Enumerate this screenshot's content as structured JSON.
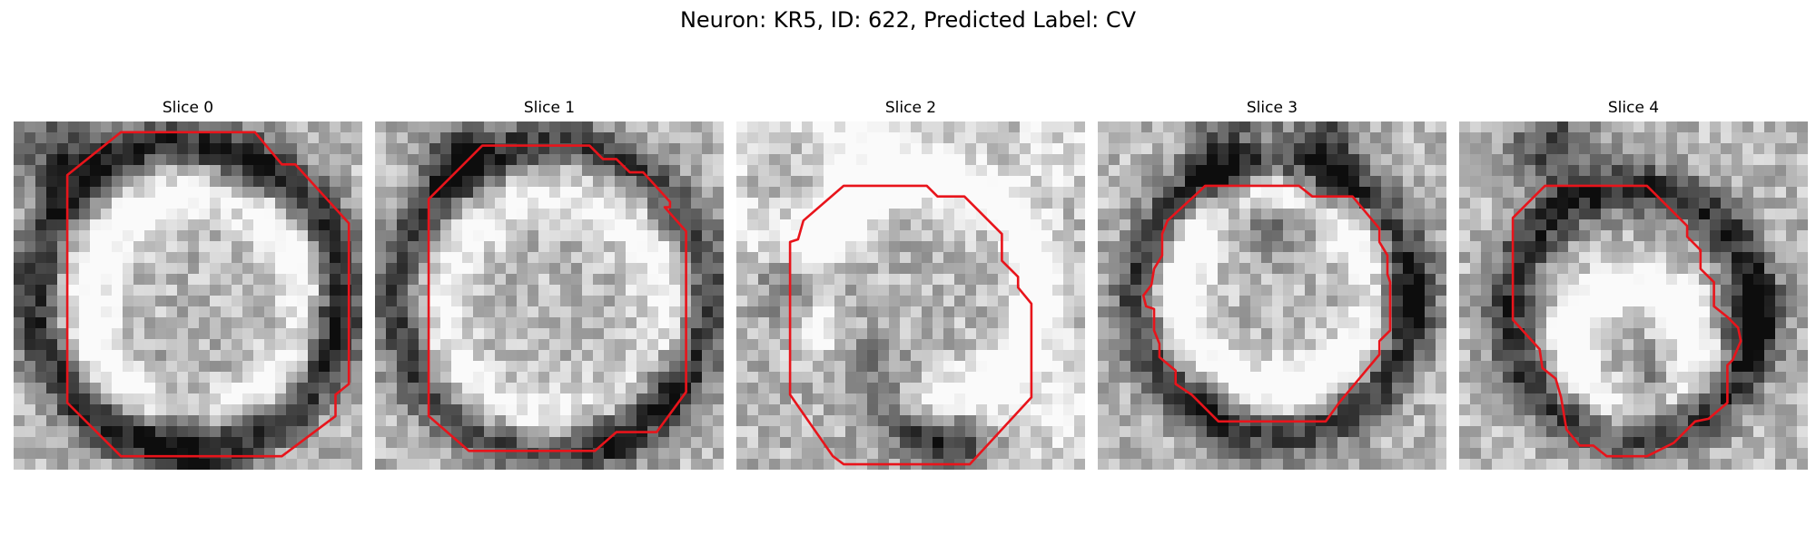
{
  "figure": {
    "title": "Neuron: KR5, ID: 622, Predicted Label: CV"
  },
  "panels": [
    {
      "title": "Slice 0",
      "contour": [
        [
          4,
          0.4
        ],
        [
          9,
          0.4
        ],
        [
          10,
          1.6
        ],
        [
          10.5,
          1.6
        ],
        [
          12.5,
          3.8
        ],
        [
          12.5,
          9.8
        ],
        [
          12,
          10.2
        ],
        [
          12,
          11
        ],
        [
          10,
          12.5
        ],
        [
          4,
          12.5
        ],
        [
          2,
          10.5
        ],
        [
          2,
          2
        ]
      ],
      "blobs": [
        {
          "x": 6.5,
          "y": 6.5,
          "r": 5.7,
          "a": -0.55
        },
        {
          "x": 6.8,
          "y": 6.8,
          "r": 4.0,
          "a": 0.45
        },
        {
          "x": 1.6,
          "y": 0.9,
          "r": 1.6,
          "a": -0.45
        },
        {
          "x": 8.2,
          "y": 2.6,
          "r": 1.2,
          "a": -0.3
        },
        {
          "x": 6.3,
          "y": 11.4,
          "r": 1.8,
          "a": -0.35
        },
        {
          "x": 11.2,
          "y": 7.5,
          "r": 1.4,
          "a": -0.25
        }
      ]
    },
    {
      "title": "Slice 1",
      "contour": [
        [
          4,
          0.9
        ],
        [
          8,
          0.9
        ],
        [
          8.5,
          1.4
        ],
        [
          9,
          1.4
        ],
        [
          9.5,
          1.9
        ],
        [
          10,
          1.9
        ],
        [
          11,
          3
        ],
        [
          11,
          3.2
        ],
        [
          10.8,
          3.2
        ],
        [
          11.6,
          4.1
        ],
        [
          11.6,
          10.1
        ],
        [
          10.5,
          11.6
        ],
        [
          9,
          11.6
        ],
        [
          8.2,
          12.3
        ],
        [
          3.5,
          12.3
        ],
        [
          2,
          11
        ],
        [
          2,
          2.9
        ]
      ],
      "blobs": [
        {
          "x": 6.6,
          "y": 6.6,
          "r": 5.8,
          "a": -0.45
        },
        {
          "x": 6.6,
          "y": 6.9,
          "r": 4.1,
          "a": 0.3
        },
        {
          "x": 3.2,
          "y": 1.5,
          "r": 1.4,
          "a": -0.4
        },
        {
          "x": 10.6,
          "y": 9.8,
          "r": 1.3,
          "a": -0.3
        },
        {
          "x": 8.4,
          "y": 11.6,
          "r": 1.1,
          "a": -0.3
        }
      ]
    },
    {
      "title": "Slice 2",
      "contour": [
        [
          4,
          2.4
        ],
        [
          7.1,
          2.4
        ],
        [
          7.5,
          2.8
        ],
        [
          8.5,
          2.8
        ],
        [
          9.9,
          4.2
        ],
        [
          9.9,
          5.2
        ],
        [
          10.5,
          5.8
        ],
        [
          10.5,
          6.2
        ],
        [
          11,
          6.8
        ],
        [
          11,
          10.3
        ],
        [
          8.7,
          12.8
        ],
        [
          4,
          12.8
        ],
        [
          3.6,
          12.5
        ],
        [
          2,
          10.2
        ],
        [
          2,
          4.5
        ],
        [
          2.3,
          4.4
        ],
        [
          2.5,
          3.7
        ]
      ],
      "blobs": [
        {
          "x": 7.0,
          "y": 6.3,
          "r": 4.2,
          "a": 0.5
        },
        {
          "x": 1.6,
          "y": 1.9,
          "r": 2.3,
          "a": 0.25
        },
        {
          "x": 5.6,
          "y": 1.0,
          "r": 1.7,
          "a": 0.25
        },
        {
          "x": 2.5,
          "y": 6.3,
          "r": 1.2,
          "a": -0.55
        },
        {
          "x": 4.0,
          "y": 9.0,
          "r": 1.2,
          "a": -0.5
        },
        {
          "x": 5.4,
          "y": 10.2,
          "r": 1.2,
          "a": -0.55
        },
        {
          "x": 6.8,
          "y": 11.4,
          "r": 1.3,
          "a": -0.5
        },
        {
          "x": 8.3,
          "y": 12.0,
          "r": 1.1,
          "a": -0.45
        },
        {
          "x": 11.9,
          "y": 1.4,
          "r": 1.6,
          "a": 0.2
        },
        {
          "x": 12.2,
          "y": 10.6,
          "r": 1.7,
          "a": 0.3
        }
      ]
    },
    {
      "title": "Slice 3",
      "contour": [
        [
          4,
          2.4
        ],
        [
          7.5,
          2.4
        ],
        [
          8,
          2.8
        ],
        [
          9.5,
          2.8
        ],
        [
          10.5,
          4
        ],
        [
          10.5,
          4.5
        ],
        [
          10.8,
          5
        ],
        [
          10.8,
          5.7
        ],
        [
          10.9,
          6
        ],
        [
          10.9,
          7.8
        ],
        [
          10.5,
          8.2
        ],
        [
          10.5,
          8.7
        ],
        [
          10,
          9.3
        ],
        [
          9,
          10.5
        ],
        [
          8.5,
          11.2
        ],
        [
          4.5,
          11.2
        ],
        [
          3.5,
          10.2
        ],
        [
          2.9,
          9.8
        ],
        [
          2.9,
          9.3
        ],
        [
          2.3,
          8.8
        ],
        [
          2.3,
          8.3
        ],
        [
          2.1,
          7.8
        ],
        [
          2.1,
          7
        ],
        [
          1.8,
          6.9
        ],
        [
          1.7,
          6.5
        ],
        [
          2,
          6.1
        ],
        [
          2.1,
          5.5
        ],
        [
          2.4,
          5
        ],
        [
          2.4,
          4.2
        ],
        [
          2.6,
          3.7
        ],
        [
          3.8,
          2.6
        ]
      ],
      "blobs": [
        {
          "x": 6.6,
          "y": 6.6,
          "r": 5.1,
          "a": -0.5
        },
        {
          "x": 6.6,
          "y": 6.4,
          "r": 3.6,
          "a": 0.5
        },
        {
          "x": 6.6,
          "y": 1.5,
          "r": 2.3,
          "a": -0.35
        },
        {
          "x": 11.0,
          "y": 6.6,
          "r": 1.4,
          "a": -0.4
        },
        {
          "x": 4.2,
          "y": 10.2,
          "r": 1.2,
          "a": -0.3
        }
      ]
    },
    {
      "title": "Slice 4",
      "contour": [
        [
          4,
          2.4
        ],
        [
          7,
          2.4
        ],
        [
          8.5,
          3.9
        ],
        [
          8.5,
          4.3
        ],
        [
          9,
          4.8
        ],
        [
          9,
          5.5
        ],
        [
          9.5,
          6
        ],
        [
          9.5,
          6.9
        ],
        [
          10,
          7.3
        ],
        [
          10.4,
          7.7
        ],
        [
          10.5,
          8.2
        ],
        [
          10.2,
          8.9
        ],
        [
          10,
          9.1
        ],
        [
          10,
          10.5
        ],
        [
          9.3,
          11.1
        ],
        [
          8.8,
          11.2
        ],
        [
          8,
          12
        ],
        [
          7,
          12.5
        ],
        [
          5.5,
          12.5
        ],
        [
          5,
          12.1
        ],
        [
          4.5,
          12.1
        ],
        [
          4,
          11.5
        ],
        [
          3.8,
          10.3
        ],
        [
          3.6,
          9.6
        ],
        [
          3.1,
          9.2
        ],
        [
          3,
          8.5
        ],
        [
          2,
          7.4
        ],
        [
          2,
          3.6
        ],
        [
          3.2,
          2.4
        ]
      ],
      "blobs": [
        {
          "x": 6.5,
          "y": 7.1,
          "r": 4.6,
          "a": -0.55
        },
        {
          "x": 6.5,
          "y": 8.5,
          "r": 2.3,
          "a": 0.45
        },
        {
          "x": 3.5,
          "y": 1.0,
          "r": 1.6,
          "a": -0.45
        },
        {
          "x": 10.8,
          "y": 7.4,
          "r": 1.3,
          "a": -0.35
        },
        {
          "x": 7.4,
          "y": 9.9,
          "r": 1.2,
          "a": -0.3
        }
      ]
    }
  ]
}
